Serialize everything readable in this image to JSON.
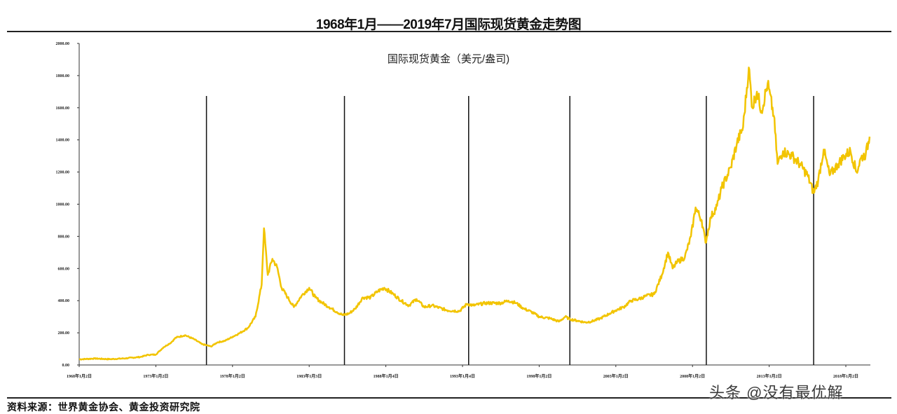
{
  "chart_data": {
    "type": "line",
    "title": "1968年1月——2019年7月国际现货黄金走势图",
    "series_label": "国际现货黄金（美元/盎司)",
    "xlabel": "",
    "ylabel": "",
    "ylim": [
      0,
      2000
    ],
    "x_range": [
      1968.0,
      2019.6
    ],
    "y_ticks": [
      "0.00",
      "200.00",
      "400.00",
      "600.00",
      "800.00",
      "1000.00",
      "1200.00",
      "1400.00",
      "1600.00",
      "1800.00",
      "2000.00"
    ],
    "x_ticks": [
      {
        "x": 1968.0,
        "label": "1968年1月2日"
      },
      {
        "x": 1973.0,
        "label": "1973年1月2日"
      },
      {
        "x": 1978.0,
        "label": "1978年1月2日"
      },
      {
        "x": 1983.0,
        "label": "1983年1月3日"
      },
      {
        "x": 1988.0,
        "label": "1988年1月4日"
      },
      {
        "x": 1993.0,
        "label": "1993年1月4日"
      },
      {
        "x": 1998.0,
        "label": "1998年1月2日"
      },
      {
        "x": 2003.0,
        "label": "2003年1月2日"
      },
      {
        "x": 2008.0,
        "label": "2008年1月2日"
      },
      {
        "x": 2013.0,
        "label": "2013年1月2日"
      },
      {
        "x": 2018.0,
        "label": "2018年1月2日"
      }
    ],
    "vertical_markers": [
      1976.3,
      1985.3,
      1993.4,
      2000.0,
      2008.9,
      2015.9
    ],
    "line_color": "#f2c400",
    "grid": false,
    "series": [
      {
        "x": [
          1968.0,
          1969.0,
          1970.0,
          1971.0,
          1972.0,
          1972.5,
          1973.0,
          1973.5,
          1974.0,
          1974.3,
          1974.9,
          1975.5,
          1976.0,
          1976.6,
          1977.0,
          1977.5,
          1978.0,
          1978.5,
          1979.0,
          1979.5,
          1979.9,
          1980.05,
          1980.3,
          1980.6,
          1980.9,
          1981.2,
          1981.6,
          1982.0,
          1982.5,
          1983.0,
          1983.4,
          1983.8,
          1984.3,
          1984.8,
          1985.2,
          1985.6,
          1986.0,
          1986.5,
          1987.0,
          1987.5,
          1987.9,
          1988.5,
          1989.0,
          1989.5,
          1990.0,
          1990.5,
          1991.0,
          1992.0,
          1992.8,
          1993.3,
          1993.7,
          1994.5,
          1995.5,
          1996.0,
          1996.5,
          1997.0,
          1997.5,
          1998.0,
          1998.7,
          1999.3,
          1999.7,
          2000.0,
          2000.5,
          2001.0,
          2001.4,
          2002.0,
          2002.6,
          2003.0,
          2003.5,
          2004.0,
          2004.5,
          2005.0,
          2005.5,
          2006.0,
          2006.4,
          2006.7,
          2007.0,
          2007.5,
          2007.9,
          2008.2,
          2008.6,
          2008.85,
          2009.2,
          2009.6,
          2009.9,
          2010.5,
          2010.9,
          2011.3,
          2011.67,
          2011.9,
          2012.2,
          2012.5,
          2012.9,
          2013.3,
          2013.55,
          2013.9,
          2014.5,
          2015.0,
          2015.5,
          2015.9,
          2016.2,
          2016.55,
          2016.95,
          2017.5,
          2017.9,
          2018.3,
          2018.7,
          2019.0,
          2019.3,
          2019.55
        ],
        "values": [
          35,
          40,
          36,
          41,
          50,
          63,
          65,
          110,
          140,
          170,
          185,
          160,
          130,
          115,
          140,
          150,
          175,
          200,
          230,
          300,
          500,
          850,
          560,
          660,
          610,
          480,
          420,
          360,
          430,
          480,
          420,
          390,
          360,
          330,
          310,
          320,
          350,
          420,
          420,
          460,
          480,
          440,
          400,
          370,
          410,
          360,
          370,
          340,
          335,
          380,
          370,
          385,
          385,
          400,
          385,
          350,
          330,
          300,
          290,
          270,
          300,
          285,
          275,
          265,
          270,
          290,
          320,
          340,
          360,
          400,
          410,
          430,
          440,
          560,
          700,
          600,
          640,
          670,
          800,
          980,
          900,
          760,
          920,
          990,
          1100,
          1230,
          1380,
          1480,
          1850,
          1600,
          1700,
          1580,
          1750,
          1550,
          1250,
          1330,
          1300,
          1250,
          1180,
          1070,
          1150,
          1340,
          1180,
          1250,
          1300,
          1330,
          1200,
          1290,
          1310,
          1420
        ]
      }
    ]
  },
  "source_text": "资料来源：世界黄金协会、黄金投资研究院",
  "watermark": "头条 @没有最优解"
}
